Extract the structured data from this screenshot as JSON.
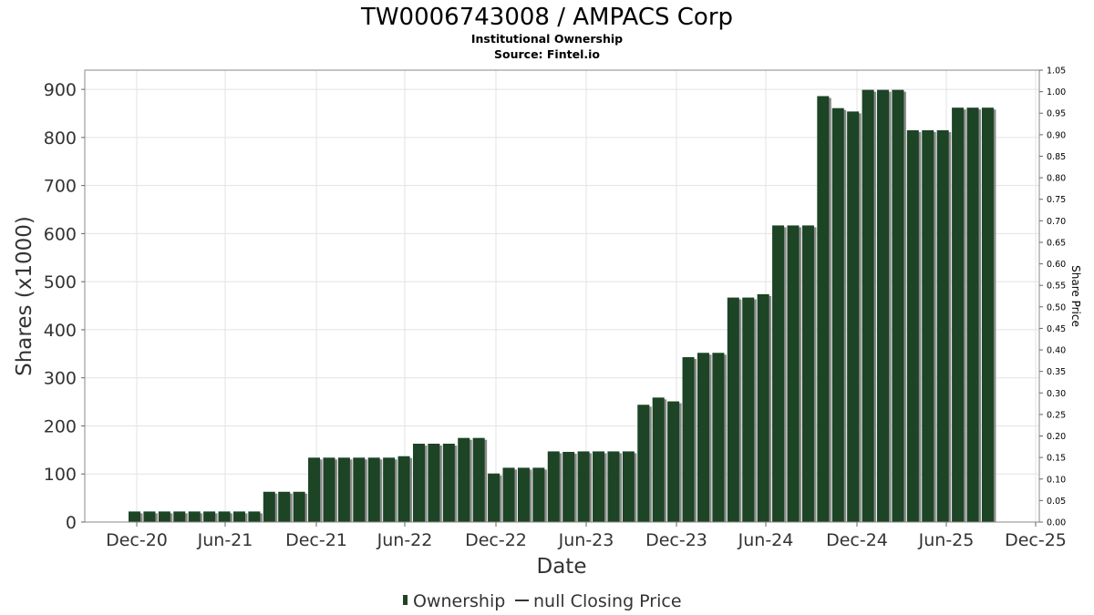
{
  "header": {
    "title": "TW0006743008 / AMPACS Corp",
    "subtitle": "Institutional Ownership",
    "source": "Source: Fintel.io"
  },
  "legend": {
    "ownership_label": "Ownership",
    "price_label": "null Closing Price"
  },
  "colors": {
    "bar": "#1c4425",
    "bar_shadow": "#8a8a8a",
    "grid": "#e3e3e3",
    "frame": "#888888"
  },
  "chart_data": {
    "type": "bar",
    "title": "TW0006743008 / AMPACS Corp",
    "subtitle": "Institutional Ownership",
    "xlabel": "Date",
    "ylabel": "Shares (x1000)",
    "y2label": "Share Price",
    "ylim": [
      0,
      940
    ],
    "y2lim": [
      0,
      1.05
    ],
    "y_ticks": [
      0,
      100,
      200,
      300,
      400,
      500,
      600,
      700,
      800,
      900
    ],
    "y2_ticks": [
      "0.00",
      "0.05",
      "0.10",
      "0.15",
      "0.20",
      "0.25",
      "0.30",
      "0.35",
      "0.40",
      "0.45",
      "0.50",
      "0.55",
      "0.60",
      "0.65",
      "0.70",
      "0.75",
      "0.80",
      "0.85",
      "0.90",
      "0.95",
      "1.00",
      "1.05"
    ],
    "x_ticks": [
      "Dec-20",
      "Jun-21",
      "Dec-21",
      "Jun-22",
      "Dec-22",
      "Jun-23",
      "Dec-23",
      "Jun-24",
      "Dec-24",
      "Jun-25",
      "Dec-25"
    ],
    "grid": true,
    "legend_position": "bottom",
    "series": [
      {
        "name": "Ownership",
        "values": [
          22,
          22,
          22,
          22,
          22,
          22,
          22,
          22,
          22,
          63,
          63,
          63,
          134,
          134,
          134,
          134,
          134,
          134,
          137,
          163,
          163,
          163,
          175,
          175,
          101,
          113,
          113,
          113,
          147,
          146,
          147,
          147,
          147,
          147,
          244,
          259,
          251,
          343,
          352,
          352,
          467,
          467,
          474,
          617,
          617,
          617,
          886,
          861,
          854,
          899,
          899,
          899,
          815,
          815,
          815,
          862,
          862,
          862
        ]
      }
    ]
  }
}
